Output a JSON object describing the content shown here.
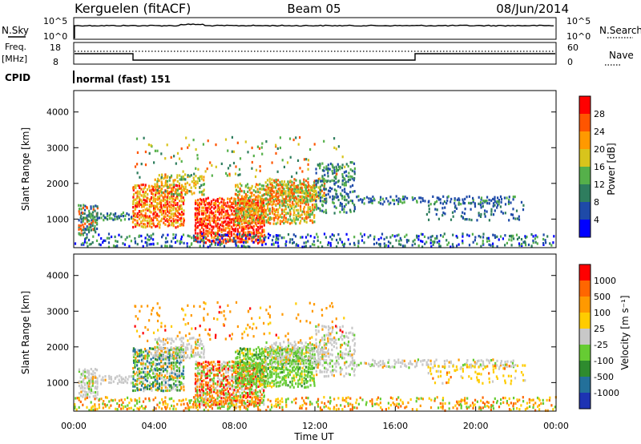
{
  "header": {
    "station": "Kerguelen (fitACF)",
    "beam": "Beam 05",
    "date": "08/Jun/2014"
  },
  "panels": {
    "nsky": {
      "left_label": "N.Sky",
      "right_label": "N.Search",
      "tick_top": "10^5",
      "tick_bottom": "10^0"
    },
    "freq": {
      "left_label_1": "Freq.",
      "left_label_2": "[MHz]",
      "right_label": "Nave",
      "tick_left_top": "18",
      "tick_left_bottom": "8",
      "tick_right_top": "60",
      "tick_right_bottom": "0"
    },
    "cpid": {
      "label": "CPID",
      "value": "normal (fast) 151"
    }
  },
  "chart_data": [
    {
      "type": "heatmap",
      "name": "power",
      "ylabel": "Slant Range [km]",
      "xlabel": "",
      "ylim": [
        200,
        4600
      ],
      "yticks": [
        "1000",
        "2000",
        "3000",
        "4000"
      ],
      "colorbar": {
        "label": "Power [dB]",
        "ticks": [
          "4",
          "8",
          "12",
          "16",
          "20",
          "24",
          "28"
        ],
        "colors": [
          "#0000ff",
          "#1e4aa8",
          "#2e7d5e",
          "#55b04a",
          "#d8c41c",
          "#ff9900",
          "#ff5500",
          "#ff0000"
        ]
      }
    },
    {
      "type": "heatmap",
      "name": "velocity",
      "ylabel": "Slant Range [km]",
      "xlabel": "Time UT",
      "ylim": [
        200,
        4600
      ],
      "yticks": [
        "1000",
        "2000",
        "3000",
        "4000"
      ],
      "xticks": [
        "00:00",
        "04:00",
        "08:00",
        "12:00",
        "16:00",
        "20:00",
        "00:00"
      ],
      "colorbar": {
        "label": "Velocity [m s⁻¹]",
        "ticks": [
          "1000",
          "500",
          "100",
          "25",
          "-25",
          "-100",
          "-500",
          "-1000"
        ],
        "colors": [
          "#1d33b3",
          "#23709a",
          "#2e8b2e",
          "#66cc33",
          "#c8c8c8",
          "#ffcc00",
          "#ff9900",
          "#ff6600",
          "#ff0000"
        ]
      }
    }
  ]
}
